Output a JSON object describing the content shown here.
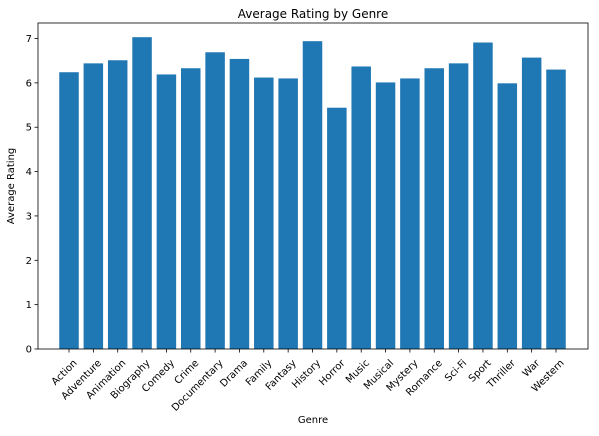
{
  "chart_data": {
    "type": "bar",
    "title": "Average Rating by Genre",
    "xlabel": "Genre",
    "ylabel": "Average Rating",
    "categories": [
      "Action",
      "Adventure",
      "Animation",
      "Biography",
      "Comedy",
      "Crime",
      "Documentary",
      "Drama",
      "Family",
      "Fantasy",
      "History",
      "Horror",
      "Music",
      "Musical",
      "Mystery",
      "Romance",
      "Sci-Fi",
      "Sport",
      "Thriller",
      "War",
      "Western"
    ],
    "values": [
      6.24,
      6.44,
      6.51,
      7.03,
      6.19,
      6.33,
      6.69,
      6.54,
      6.12,
      6.1,
      6.94,
      5.44,
      6.37,
      6.01,
      6.1,
      6.33,
      6.44,
      6.91,
      5.99,
      6.57,
      6.3
    ],
    "ylim": [
      0,
      7.35
    ],
    "yticks": [
      0,
      1,
      2,
      3,
      4,
      5,
      6,
      7
    ],
    "grid": false,
    "legend": "none",
    "bar_color": "#1f77b4"
  }
}
